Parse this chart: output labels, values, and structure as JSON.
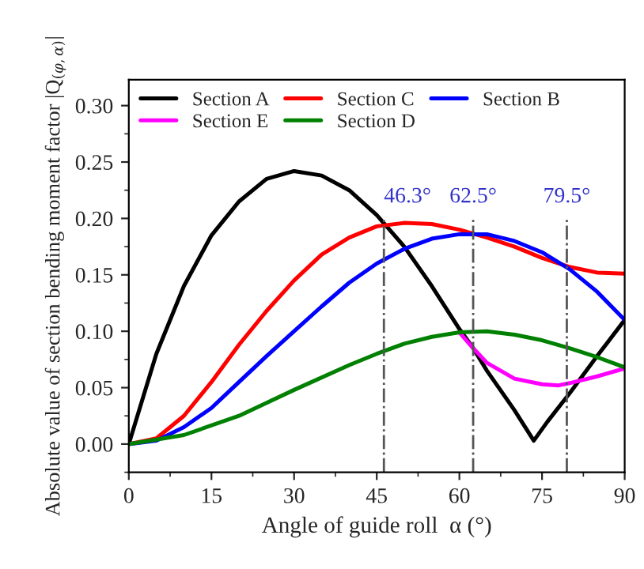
{
  "chart_data": {
    "type": "line",
    "xlabel": "Angle of guide roll  α (°)",
    "ylabel": "Absolute value of section bending moment factor |Q$_{(φ,α)}$|",
    "xlim": [
      0,
      90
    ],
    "ylim": [
      -0.025,
      0.323
    ],
    "xticks": [
      0,
      15,
      30,
      45,
      60,
      75,
      90
    ],
    "yticks": [
      {
        "value": 0,
        "label": "0.00"
      },
      {
        "value": 0.05,
        "label": "0.05"
      },
      {
        "value": 0.1,
        "label": "0.10"
      },
      {
        "value": 0.15,
        "label": "0.15"
      },
      {
        "value": 0.2,
        "label": "0.20"
      },
      {
        "value": 0.25,
        "label": "0.25"
      },
      {
        "value": 0.3,
        "label": "0.30"
      }
    ],
    "grid": false,
    "legend": "top left",
    "line_style": "solid",
    "marker": "none",
    "series": [
      {
        "name": "Section A",
        "color": "#000000",
        "x": [
          0,
          5,
          10,
          15,
          20,
          25,
          30,
          35,
          40,
          45,
          50,
          55,
          60,
          62.5,
          65,
          70,
          73.5,
          76,
          80,
          85,
          90
        ],
        "values": [
          0,
          0.08,
          0.14,
          0.185,
          0.215,
          0.235,
          0.242,
          0.238,
          0.225,
          0.203,
          0.175,
          0.14,
          0.102,
          0.085,
          0.065,
          0.03,
          0.003,
          0.02,
          0.045,
          0.078,
          0.11
        ]
      },
      {
        "name": "Section C",
        "color": "#ff0000",
        "x": [
          0,
          5,
          10,
          15,
          20,
          25,
          30,
          35,
          40,
          45,
          50,
          55,
          60,
          65,
          70,
          75,
          80,
          85,
          90
        ],
        "values": [
          0,
          0.005,
          0.025,
          0.055,
          0.088,
          0.118,
          0.145,
          0.168,
          0.183,
          0.193,
          0.196,
          0.195,
          0.19,
          0.183,
          0.175,
          0.165,
          0.157,
          0.152,
          0.151
        ]
      },
      {
        "name": "Section B",
        "color": "#0000ff",
        "x": [
          0,
          5,
          10,
          15,
          20,
          25,
          30,
          35,
          40,
          45,
          50,
          55,
          60,
          65,
          70,
          75,
          80,
          85,
          90
        ],
        "values": [
          0,
          0.003,
          0.015,
          0.032,
          0.055,
          0.078,
          0.1,
          0.122,
          0.143,
          0.16,
          0.173,
          0.182,
          0.186,
          0.186,
          0.18,
          0.17,
          0.155,
          0.135,
          0.11
        ]
      },
      {
        "name": "Section E",
        "color": "#ff00ff",
        "x": [
          60,
          62.5,
          65,
          70,
          75,
          78,
          80,
          85,
          90
        ],
        "values": [
          0.099,
          0.085,
          0.072,
          0.058,
          0.053,
          0.052,
          0.054,
          0.06,
          0.067
        ]
      },
      {
        "name": "Section D",
        "color": "#008000",
        "x": [
          0,
          10,
          20,
          30,
          40,
          45,
          50,
          55,
          60,
          65,
          70,
          75,
          80,
          85,
          90
        ],
        "values": [
          0,
          0.008,
          0.025,
          0.048,
          0.07,
          0.08,
          0.089,
          0.095,
          0.099,
          0.1,
          0.097,
          0.092,
          0.085,
          0.077,
          0.068
        ]
      }
    ],
    "ref_lines": [
      {
        "axis": "x",
        "value": 46.3,
        "label": "46.3°",
        "color": "#555555",
        "line_style": "dashdot"
      },
      {
        "axis": "x",
        "value": 62.5,
        "label": "62.5°",
        "color": "#555555",
        "line_style": "dashdot"
      },
      {
        "axis": "x",
        "value": 79.5,
        "label": "79.5°",
        "color": "#555555",
        "line_style": "dashdot"
      }
    ]
  }
}
